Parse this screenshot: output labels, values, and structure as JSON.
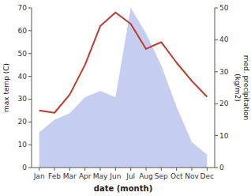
{
  "chart_data": {
    "type": "line",
    "xlabel": "date (month)",
    "ylabel": "max temp (C)",
    "y2label": "med. precipitation\n(kg/m2)",
    "categories": [
      "Jan",
      "Feb",
      "Mar",
      "Apr",
      "May",
      "Jun",
      "Jul",
      "Aug",
      "Sep",
      "Oct",
      "Nov",
      "Dec"
    ],
    "series": [
      {
        "type": "area",
        "axis": "y2",
        "color": "#c5cef0",
        "values": [
          11,
          15,
          17,
          22,
          24,
          22,
          50,
          42,
          32,
          19,
          8,
          4
        ]
      },
      {
        "type": "line",
        "color": "#c0392b",
        "values": [
          25,
          24,
          32,
          45,
          62,
          68,
          63,
          52,
          55,
          46,
          38,
          31
        ]
      }
    ],
    "ylim": [
      0,
      70
    ],
    "yticks": [
      0,
      10,
      20,
      30,
      40,
      50,
      60,
      70
    ],
    "y2lim": [
      0,
      50
    ],
    "y2ticks": [
      0,
      10,
      20,
      30,
      40,
      50
    ],
    "grid": false
  }
}
